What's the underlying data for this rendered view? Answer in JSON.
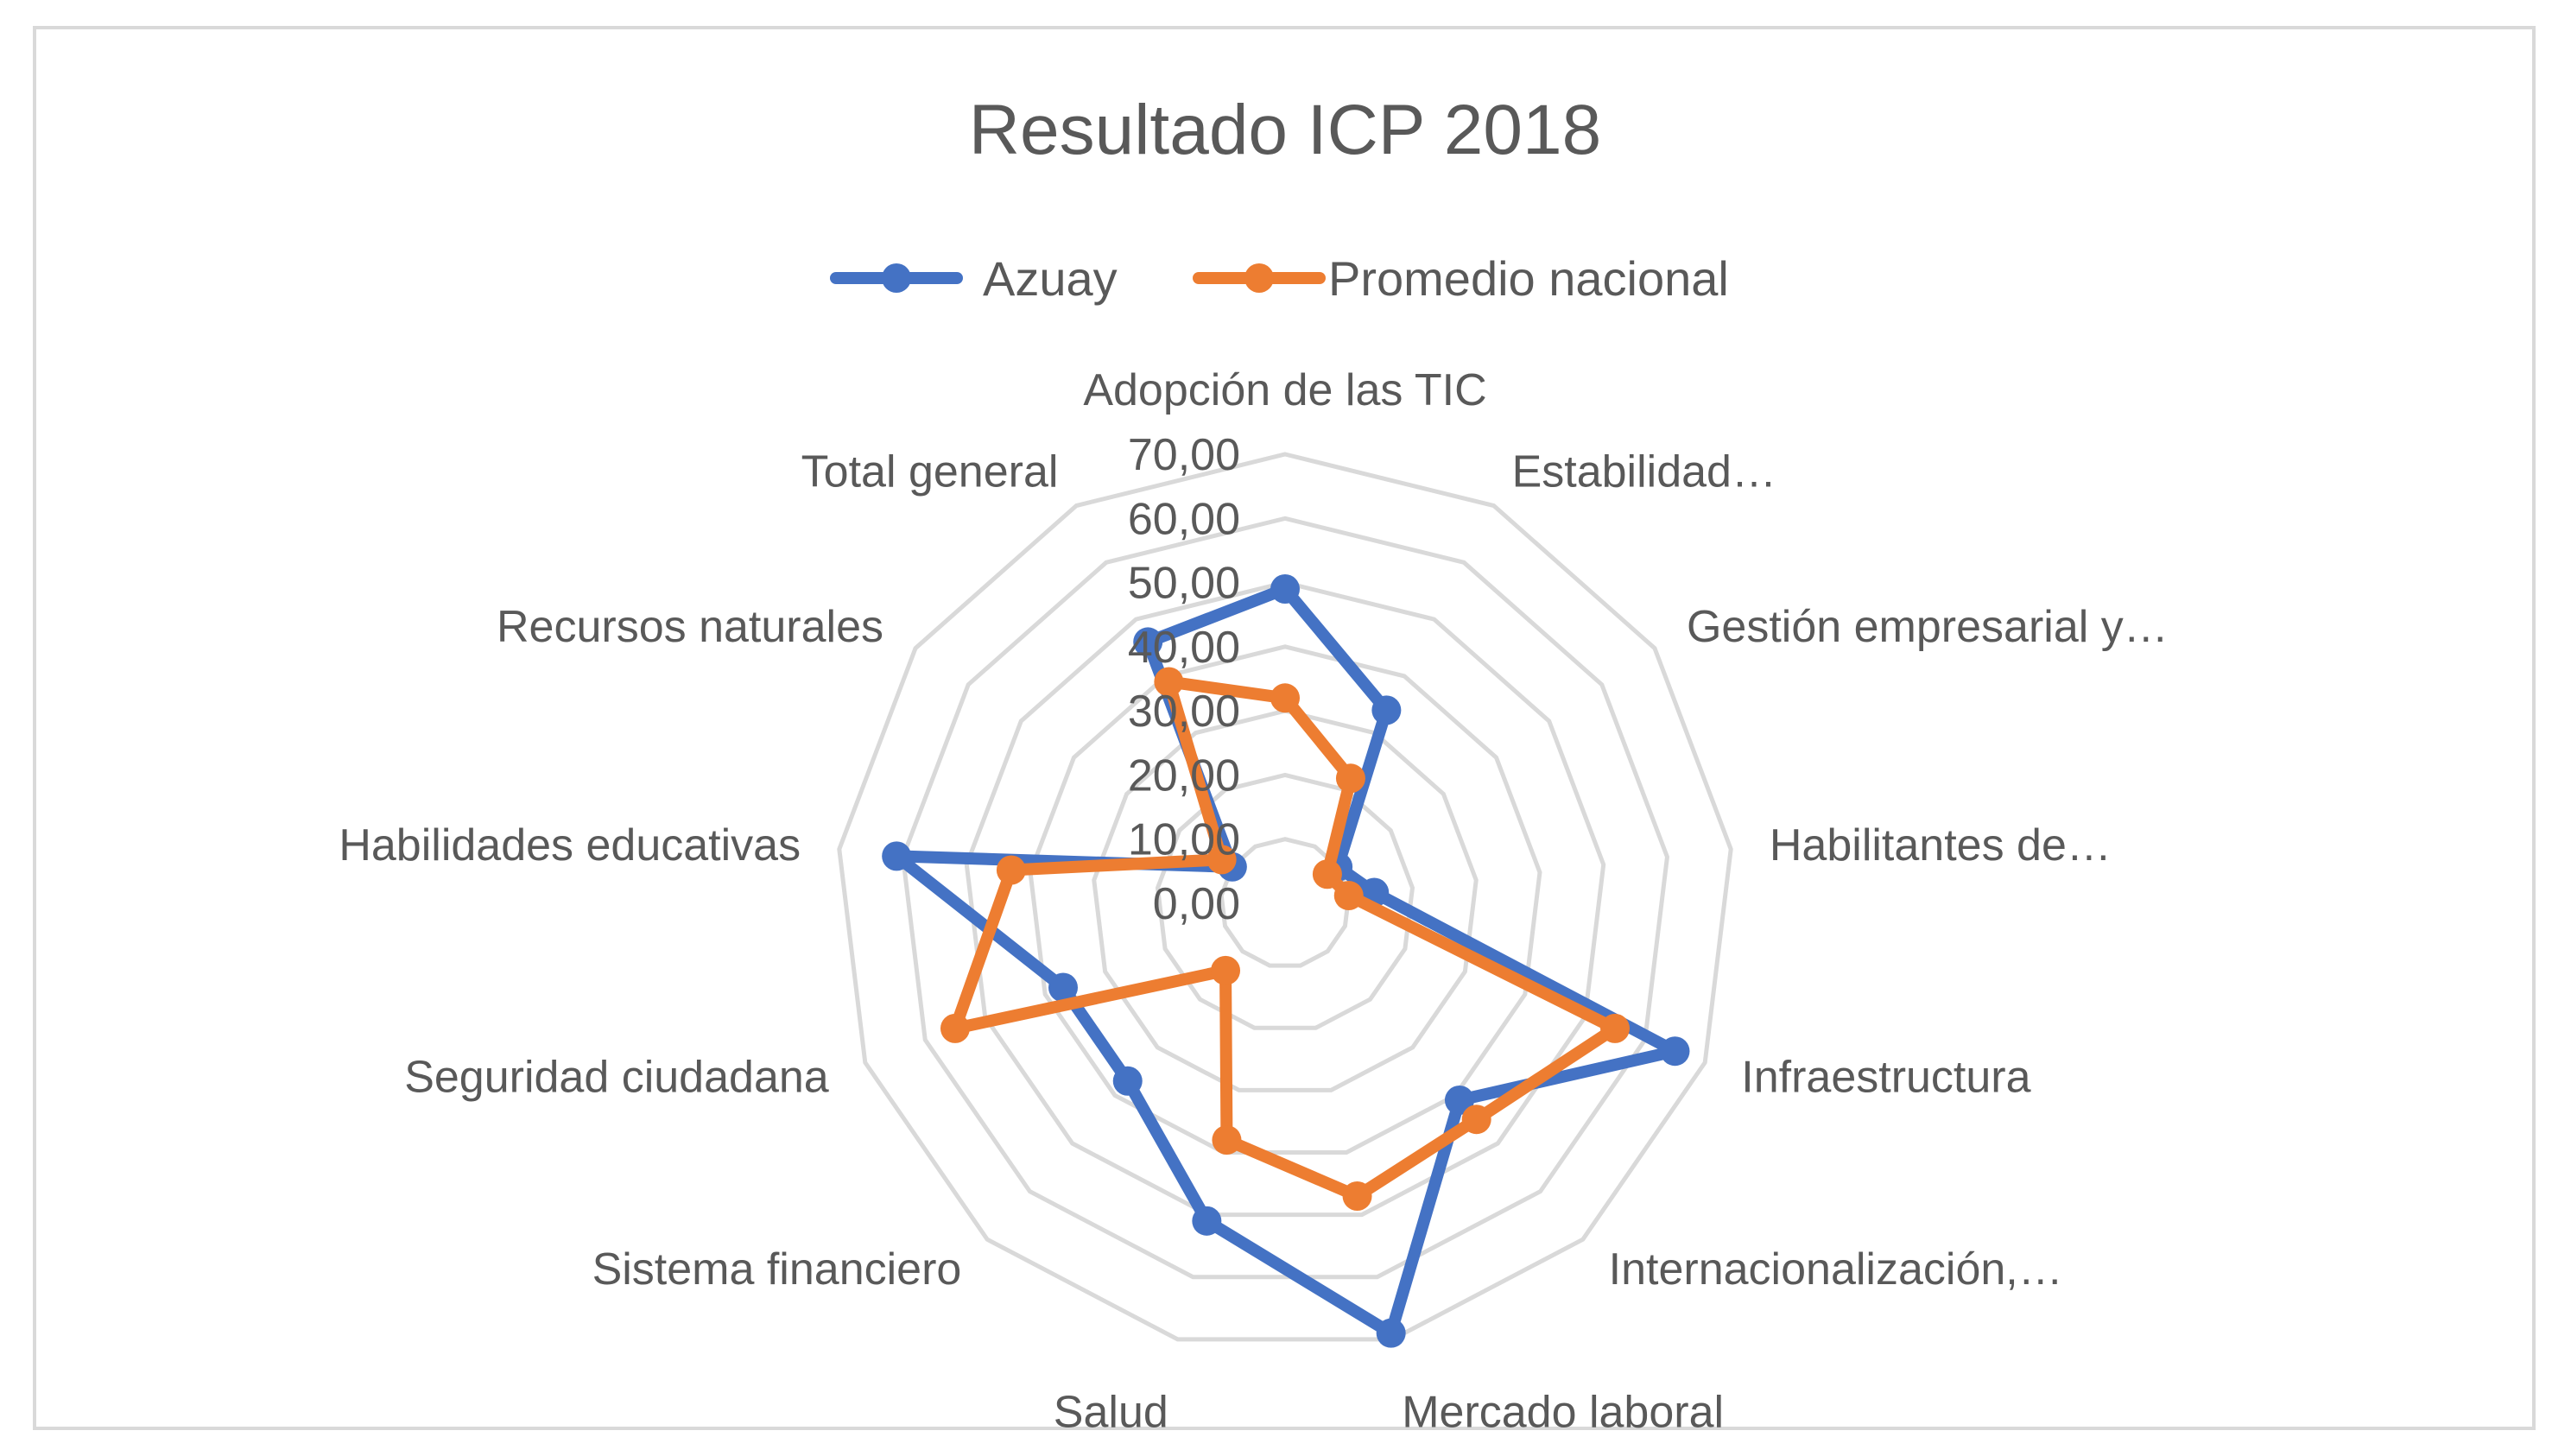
{
  "chart_data": {
    "type": "radar",
    "title": "Resultado ICP 2018",
    "categories": [
      "Adopción de las TIC",
      "Estabilidad…",
      "Gestión empresarial y…",
      "Habilitantes de…",
      "Infraestructura",
      "Internacionalización,…",
      "Mercado laboral",
      "Salud",
      "Sistema financiero",
      "Seguridad ciudadana",
      "Habilidades educativas",
      "Recursos naturales",
      "Total general"
    ],
    "series": [
      {
        "name": "Azuay",
        "color": "#4472C4",
        "values": [
          49,
          34,
          10,
          14,
          65,
          41,
          69,
          51,
          37,
          37,
          61,
          10,
          46
        ]
      },
      {
        "name": "Promedio nacional",
        "color": "#ED7D31",
        "values": [
          32,
          22,
          8,
          10,
          55,
          45,
          47,
          38,
          14,
          55,
          43,
          12,
          39
        ]
      }
    ],
    "r_ticks": [
      "0,00",
      "10,00",
      "20,00",
      "30,00",
      "40,00",
      "50,00",
      "60,00",
      "70,00"
    ],
    "r_range": [
      0,
      70
    ],
    "legend_position": "top",
    "grid": true
  }
}
